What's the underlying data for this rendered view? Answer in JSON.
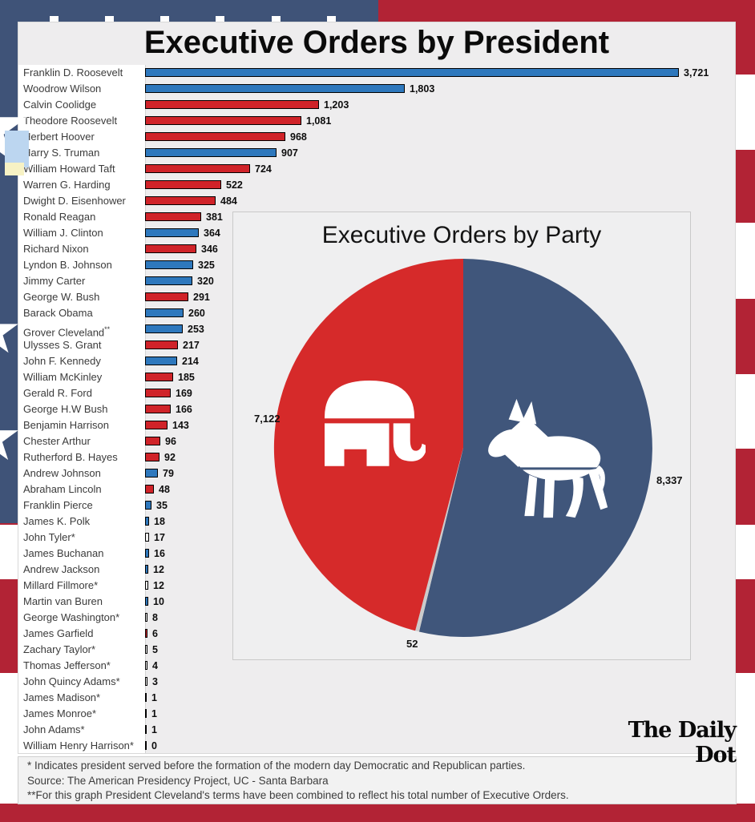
{
  "page_title": "Executive Orders by President",
  "brand_colors": {
    "flag_blue": "#3f5378",
    "flag_red": "#b22335",
    "bar_democrat_blue": "#2e78bd",
    "bar_republican_red": "#d02329",
    "pie_democrat_blue": "#40567b",
    "pie_republican_red": "#d62a2a",
    "pie_other_gray": "#cbcbcb"
  },
  "chart_data": [
    {
      "type": "bar",
      "orientation": "horizontal",
      "title": "Executive Orders by President",
      "xlim": [
        0,
        3900
      ],
      "grid": false,
      "legend_position": "none",
      "categories": [
        "Franklin D. Roosevelt",
        "Woodrow Wilson",
        "Calvin Coolidge",
        "Theodore Roosevelt",
        "Herbert Hoover",
        "Harry S. Truman",
        "William Howard Taft",
        "Warren G. Harding",
        "Dwight D. Eisenhower",
        "Ronald Reagan",
        "William J. Clinton",
        "Richard Nixon",
        "Lyndon B. Johnson",
        "Jimmy Carter",
        "George W. Bush",
        "Barack Obama",
        "Grover Cleveland**",
        "Ulysses S. Grant",
        "John F. Kennedy",
        "William McKinley",
        "Gerald R. Ford",
        "George H.W Bush",
        "Benjamin Harrison",
        "Chester Arthur",
        "Rutherford B. Hayes",
        "Andrew Johnson",
        "Abraham Lincoln",
        "Franklin Pierce",
        "James K. Polk",
        "John Tyler*",
        "James Buchanan",
        "Andrew Jackson",
        "Millard Fillmore*",
        "Martin van Buren",
        "George Washington*",
        "James Garfield",
        "Zachary Taylor*",
        "Thomas Jefferson*",
        "John Quincy Adams*",
        "James Madison*",
        "James Monroe*",
        "John Adams*",
        "William Henry Harrison*"
      ],
      "values": [
        3721,
        1803,
        1203,
        1081,
        968,
        907,
        724,
        522,
        484,
        381,
        364,
        346,
        325,
        320,
        291,
        260,
        253,
        217,
        214,
        185,
        169,
        166,
        143,
        96,
        92,
        79,
        48,
        35,
        18,
        17,
        16,
        12,
        12,
        10,
        8,
        6,
        5,
        4,
        3,
        1,
        1,
        1,
        0
      ],
      "bar_labels": [
        "3,721",
        "1,803",
        "1,203",
        "1,081",
        "968",
        "907",
        "724",
        "522",
        "484",
        "381",
        "364",
        "346",
        "325",
        "320",
        "291",
        "260",
        "253",
        "217",
        "214",
        "185",
        "169",
        "166",
        "143",
        "96",
        "92",
        "79",
        "48",
        "35",
        "18",
        "17",
        "16",
        "12",
        "12",
        "10",
        "8",
        "6",
        "5",
        "4",
        "3",
        "1",
        "1",
        "1",
        "0"
      ],
      "parties": [
        "D",
        "D",
        "R",
        "R",
        "R",
        "D",
        "R",
        "R",
        "R",
        "R",
        "D",
        "R",
        "D",
        "D",
        "R",
        "D",
        "D",
        "R",
        "D",
        "R",
        "R",
        "R",
        "R",
        "R",
        "R",
        "D",
        "R",
        "D",
        "D",
        "pre",
        "D",
        "D",
        "pre",
        "D",
        "pre",
        "R",
        "pre",
        "pre",
        "pre",
        "pre",
        "pre",
        "pre",
        "pre"
      ],
      "party_colors": {
        "D": "#2e78bd",
        "R": "#d02329",
        "pre": "#f0f0f0"
      }
    },
    {
      "type": "pie",
      "title": "Executive Orders by Party",
      "start_angle": "top",
      "direction": "clockwise",
      "legend_position": "none",
      "slices": [
        {
          "party": "Democratic",
          "value": 8337,
          "label": "8,337",
          "color": "#40567b",
          "icon": "donkey"
        },
        {
          "party": "Other",
          "value": 52,
          "label": "52",
          "color": "#cbcbcb",
          "icon": ""
        },
        {
          "party": "Republican",
          "value": 7122,
          "label": "7,122",
          "color": "#d62a2a",
          "icon": "elephant"
        }
      ]
    }
  ],
  "footnotes": {
    "line1": "* Indicates president served before the formation of the modern day Democratic and Republican parties.",
    "line2": "Source: The American Presidency Project, UC - Santa Barbara",
    "line3": "**For this graph President Cleveland's terms have been combined to reflect his total number of Executive Orders."
  },
  "logo_text": "The Daily Dot"
}
